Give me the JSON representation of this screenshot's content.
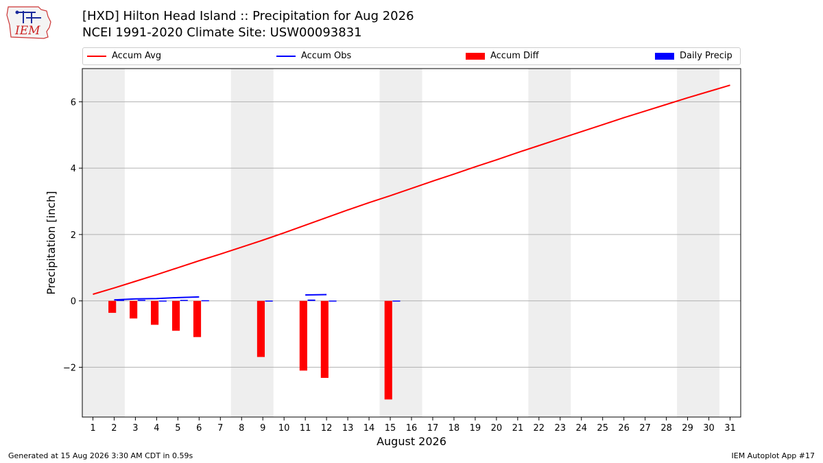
{
  "header": {
    "title_line1": "[HXD] Hilton Head Island :: Precipitation for Aug 2026",
    "title_line2": "NCEI 1991-2020 Climate Site: USW00093831",
    "logo_text": "IEM"
  },
  "footer": {
    "left": "Generated at 15 Aug 2026 3:30 AM CDT in 0.59s",
    "right": "IEM Autoplot App #17"
  },
  "colors": {
    "accum_avg": "#ff0000",
    "accum_obs": "#0000ff",
    "accum_diff": "#ff0000",
    "daily_precip": "#0000ff",
    "weekend_shade": "#eeeeee",
    "grid": "#b0b0b0"
  },
  "chart_data": {
    "type": "line",
    "xlabel": "August 2026",
    "ylabel": "Precipitation [inch]",
    "xlim": [
      0.5,
      31.5
    ],
    "ylim": [
      -3.5,
      7.0
    ],
    "x_ticks": [
      1,
      2,
      3,
      4,
      5,
      6,
      7,
      8,
      9,
      10,
      11,
      12,
      13,
      14,
      15,
      16,
      17,
      18,
      19,
      20,
      21,
      22,
      23,
      24,
      25,
      26,
      27,
      28,
      29,
      30,
      31
    ],
    "y_ticks": [
      -2,
      0,
      2,
      4,
      6
    ],
    "y_tick_labels": [
      "−2",
      "0",
      "2",
      "4",
      "6"
    ],
    "grid": "horizontal",
    "legend": {
      "placement": "top",
      "entries": [
        "Accum Avg",
        "Accum Obs",
        "Accum Diff",
        "Daily Precip"
      ]
    },
    "weekend_spans": [
      [
        0.5,
        2.5
      ],
      [
        7.5,
        9.5
      ],
      [
        14.5,
        16.5
      ],
      [
        21.5,
        23.5
      ],
      [
        28.5,
        30.5
      ]
    ],
    "accum_avg": {
      "name": "Accum Avg",
      "x": [
        1,
        2,
        3,
        4,
        5,
        6,
        7,
        8,
        9,
        10,
        11,
        12,
        13,
        14,
        15,
        16,
        17,
        18,
        19,
        20,
        21,
        22,
        23,
        24,
        25,
        26,
        27,
        28,
        29,
        30,
        31
      ],
      "y": [
        0.2,
        0.39,
        0.59,
        0.79,
        1.0,
        1.21,
        1.41,
        1.62,
        1.83,
        2.05,
        2.28,
        2.51,
        2.74,
        2.96,
        3.17,
        3.39,
        3.61,
        3.82,
        4.04,
        4.25,
        4.47,
        4.68,
        4.89,
        5.1,
        5.31,
        5.52,
        5.72,
        5.92,
        6.12,
        6.31,
        6.5
      ]
    },
    "accum_obs": {
      "name": "Accum Obs",
      "segments": [
        {
          "x": [
            2,
            3,
            4,
            5,
            6
          ],
          "y": [
            0.03,
            0.06,
            0.07,
            0.1,
            0.12
          ]
        },
        {
          "x": [
            11,
            12
          ],
          "y": [
            0.18,
            0.19
          ]
        }
      ]
    },
    "accum_diff": {
      "name": "Accum Diff",
      "x": [
        2,
        3,
        4,
        5,
        6,
        9,
        11,
        12,
        15
      ],
      "y": [
        -0.36,
        -0.53,
        -0.72,
        -0.9,
        -1.09,
        -1.69,
        -2.1,
        -2.32,
        -2.97
      ]
    },
    "daily_precip": {
      "name": "Daily Precip",
      "x": [
        2,
        3,
        4,
        5,
        6,
        9,
        11,
        12,
        15
      ],
      "y": [
        0.03,
        0.03,
        0.01,
        0.03,
        0.02,
        0.01,
        0.04,
        0.01,
        0.01
      ]
    }
  }
}
